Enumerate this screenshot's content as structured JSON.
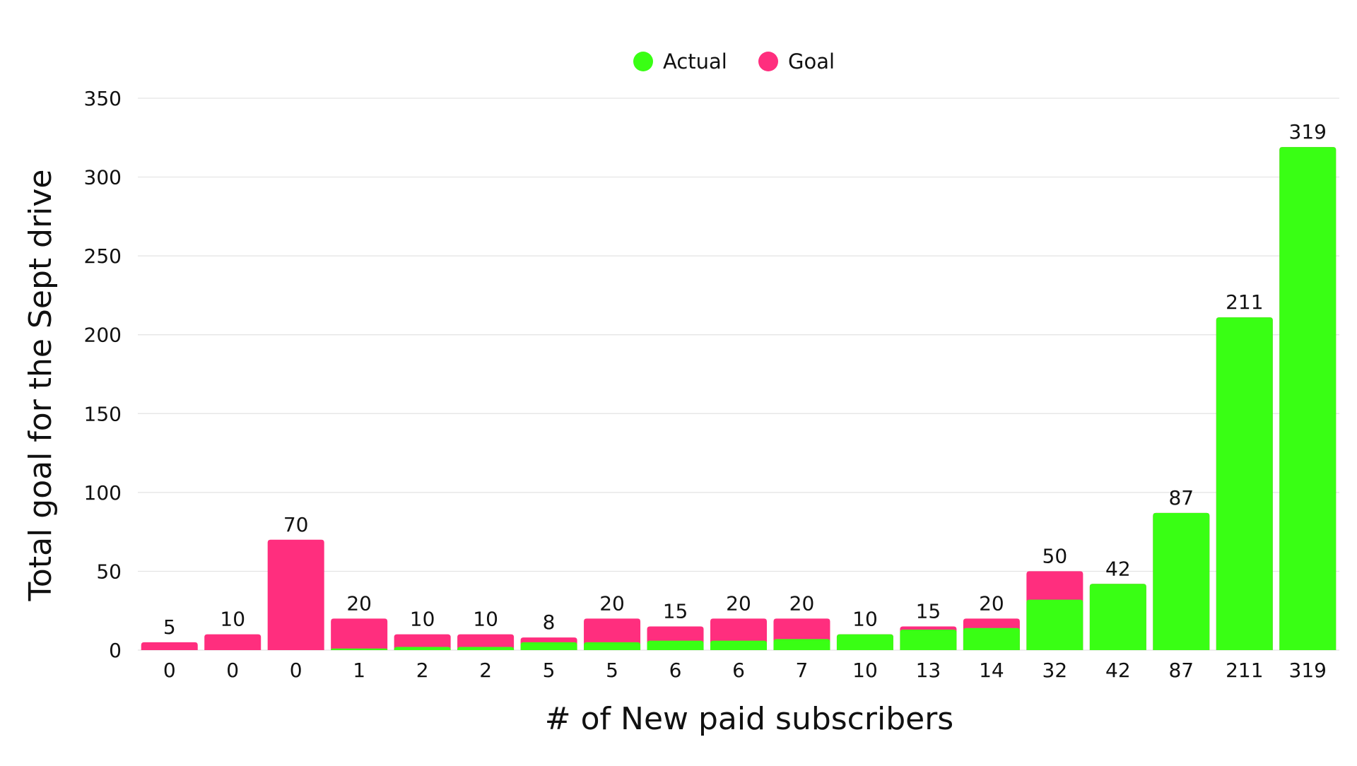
{
  "chart_data": {
    "type": "bar",
    "stacked": false,
    "overlapped": true,
    "title": "",
    "xlabel": "# of New paid subscribers",
    "ylabel": "Total goal for the Sept drive",
    "ylim": [
      0,
      350
    ],
    "yticks": [
      0,
      50,
      100,
      150,
      200,
      250,
      300,
      350
    ],
    "grid": true,
    "legend_position": "top-center",
    "categories": [
      "0",
      "0",
      "0",
      "1",
      "2",
      "2",
      "5",
      "5",
      "6",
      "6",
      "7",
      "10",
      "13",
      "14",
      "32",
      "42",
      "87",
      "211",
      "319"
    ],
    "series": [
      {
        "name": "Actual",
        "color": "#39ff14",
        "values": [
          0,
          0,
          0,
          1,
          2,
          2,
          5,
          5,
          6,
          6,
          7,
          10,
          13,
          14,
          32,
          42,
          87,
          211,
          319
        ]
      },
      {
        "name": "Goal",
        "color": "#ff2e7e",
        "values": [
          5,
          10,
          70,
          20,
          10,
          10,
          8,
          20,
          15,
          20,
          20,
          10,
          15,
          20,
          50,
          42,
          87,
          211,
          319
        ]
      }
    ],
    "data_labels": [
      "5",
      "10",
      "70",
      "20",
      "10",
      "10",
      "8",
      "20",
      "15",
      "20",
      "20",
      "10",
      "15",
      "20",
      "50",
      "42",
      "87",
      "211",
      "319"
    ]
  }
}
